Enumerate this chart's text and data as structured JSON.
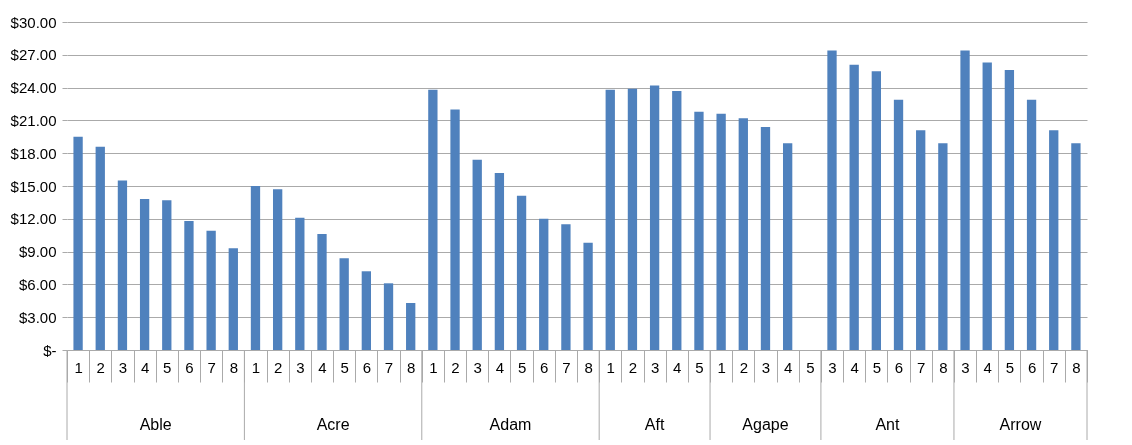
{
  "chart_data": {
    "type": "bar",
    "categories": [
      "1",
      "2",
      "3",
      "4",
      "5",
      "6",
      "7",
      "8",
      "1",
      "2",
      "3",
      "4",
      "5",
      "6",
      "7",
      "8",
      "1",
      "2",
      "3",
      "4",
      "5",
      "6",
      "7",
      "8",
      "1",
      "2",
      "3",
      "4",
      "5",
      "1",
      "2",
      "3",
      "4",
      "5",
      "3",
      "4",
      "5",
      "6",
      "7",
      "8",
      "3",
      "4",
      "5",
      "6",
      "7",
      "8"
    ],
    "values": [
      19.5,
      18.6,
      15.5,
      13.8,
      13.7,
      11.8,
      10.9,
      9.3,
      15.0,
      14.7,
      12.1,
      10.6,
      8.4,
      7.2,
      6.1,
      4.3,
      23.8,
      22.0,
      17.4,
      16.2,
      14.1,
      12.0,
      11.5,
      9.8,
      23.8,
      23.9,
      24.2,
      23.7,
      21.8,
      21.6,
      21.2,
      20.4,
      18.9,
      null,
      27.4,
      26.1,
      25.5,
      22.9,
      20.1,
      18.9,
      27.4,
      26.3,
      25.6,
      22.9,
      20.1,
      18.9
    ],
    "color": "#4f81bd",
    "annotations": [
      "Able",
      "Acre",
      "Adam",
      "Aft",
      "Agape",
      "Ant",
      "Arrow"
    ],
    "ylim": [
      0,
      30
    ],
    "yticks": [
      {
        "value": 0,
        "label": "$-"
      },
      {
        "value": 3,
        "label": "$3.00"
      },
      {
        "value": 6,
        "label": "$6.00"
      },
      {
        "value": 9,
        "label": "$9.00"
      },
      {
        "value": 12,
        "label": "$12.00"
      },
      {
        "value": 15,
        "label": "$15.00"
      },
      {
        "value": 18,
        "label": "$18.00"
      },
      {
        "value": 21,
        "label": "$21.00"
      },
      {
        "value": 24,
        "label": "$24.00"
      },
      {
        "value": 27,
        "label": "$27.00"
      },
      {
        "value": 30,
        "label": "$30.00"
      }
    ],
    "grid": "y"
  }
}
